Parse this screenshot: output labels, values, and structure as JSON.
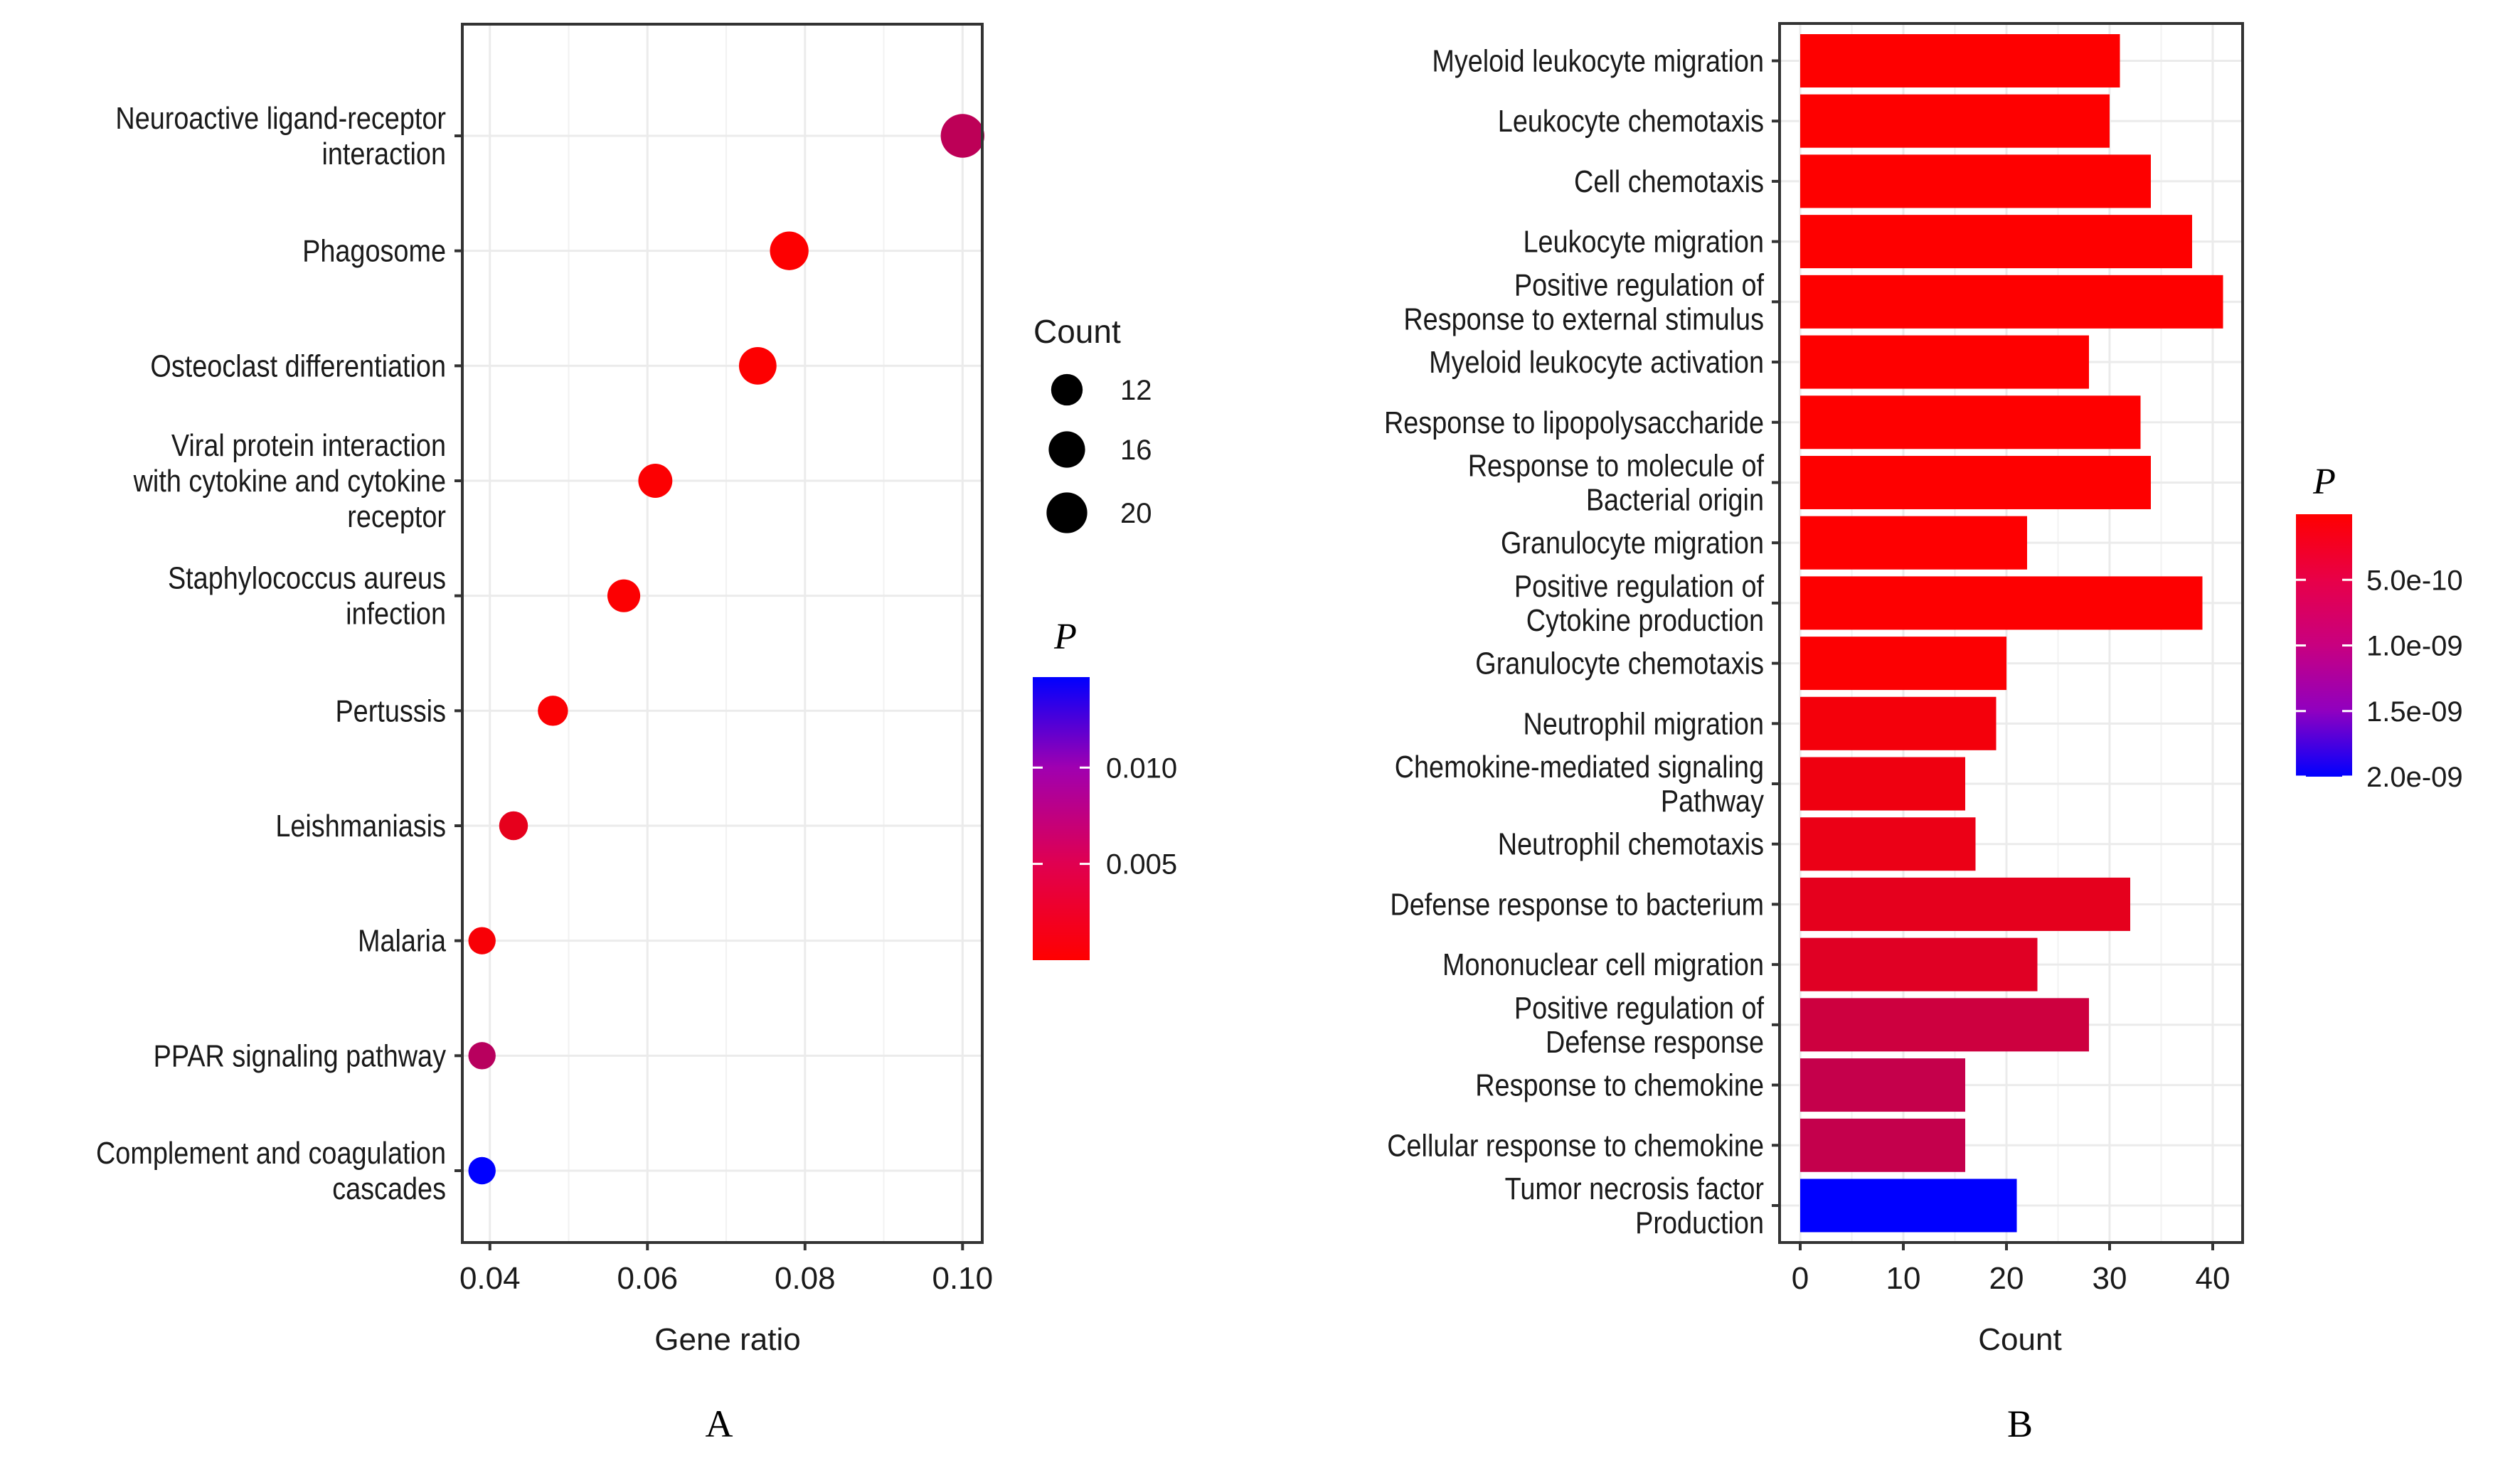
{
  "chart_data": [
    {
      "id": "A",
      "type": "scatter",
      "panel_label": "A",
      "title": "",
      "xlabel": "Gene ratio",
      "ylabel": "",
      "xlim": [
        0.0365,
        0.1025
      ],
      "xticks": [
        0.04,
        0.06,
        0.08,
        0.1
      ],
      "xtick_labels": [
        "0.04",
        "0.06",
        "0.08",
        "0.10"
      ],
      "grid": true,
      "categories": [
        "Neuroactive ligand-receptor\ninteraction",
        "Phagosome",
        "Osteoclast differentiation",
        "Viral protein interaction\nwith cytokine and cytokine\nreceptor",
        "Staphylococcus aureus\ninfection",
        "Pertussis",
        "Leishmaniasis",
        "Malaria",
        "PPAR signaling pathway",
        "Complement and coagulation\ncascades"
      ],
      "gene_ratio": [
        0.1,
        0.078,
        0.074,
        0.061,
        0.057,
        0.048,
        0.043,
        0.039,
        0.039,
        0.039
      ],
      "count": [
        23,
        18,
        17,
        14,
        13,
        11,
        10,
        9,
        9,
        9
      ],
      "p_value": [
        0.0062,
        0.0002,
        0.0002,
        0.0003,
        0.0003,
        0.0004,
        0.0025,
        0.0007,
        0.0066,
        0.0147
      ],
      "legend": {
        "size_title": "Count",
        "size_breaks": [
          12,
          16,
          20
        ],
        "size_labels": [
          "12",
          "16",
          "20"
        ],
        "color_title": "P",
        "color_range": [
          0,
          0.0147
        ],
        "color_breaks": [
          0.005,
          0.01
        ],
        "color_labels": [
          "0.005",
          "0.010"
        ],
        "color_low": "#ff0000",
        "color_high": "#0000ff",
        "placement": "right"
      }
    },
    {
      "id": "B",
      "type": "bar",
      "orientation": "horizontal",
      "panel_label": "B",
      "title": "",
      "xlabel": "Count",
      "ylabel": "",
      "xlim": [
        -1.3,
        42.9
      ],
      "xticks": [
        0,
        10,
        20,
        30,
        40
      ],
      "xtick_labels": [
        "0",
        "10",
        "20",
        "30",
        "40"
      ],
      "grid": true,
      "categories": [
        "Myeloid leukocyte migration",
        "Leukocyte chemotaxis",
        "Cell chemotaxis",
        "Leukocyte migration",
        "Positive regulation of\nResponse to external stimulus",
        "Myeloid leukocyte activation",
        "Response to lipopolysaccharide",
        "Response to molecule of\nBacterial origin",
        "Granulocyte migration",
        "Positive regulation of\nCytokine production",
        "Granulocyte chemotaxis",
        "Neutrophil migration",
        "Chemokine-mediated signaling\nPathway",
        "Neutrophil chemotaxis",
        "Defense response to bacterium",
        "Mononuclear cell migration",
        "Positive regulation of\nDefense response",
        "Response to chemokine",
        "Cellular response to chemokine",
        "Tumor necrosis factor\nProduction"
      ],
      "values": [
        31,
        30,
        34,
        38,
        41,
        28,
        33,
        34,
        22,
        39,
        20,
        19,
        16,
        17,
        32,
        23,
        28,
        16,
        16,
        21
      ],
      "p_value": [
        1e-11,
        1e-11,
        1e-11,
        1e-11,
        1e-11,
        1e-11,
        1e-11,
        1e-11,
        2e-11,
        3e-11,
        4e-11,
        1.6e-10,
        2.2e-10,
        2.8e-10,
        3.5e-10,
        4.2e-10,
        6.5e-10,
        7.5e-10,
        7.6e-10,
        2e-09
      ],
      "legend": {
        "color_title": "P",
        "color_range": [
          0,
          2e-09
        ],
        "color_breaks": [
          5e-10,
          1e-09,
          1.5e-09,
          2e-09
        ],
        "color_labels": [
          "5.0e-10",
          "1.0e-09",
          "1.5e-09",
          "2.0e-09"
        ],
        "color_low": "#ff0000",
        "color_high": "#0000ff",
        "placement": "right"
      }
    }
  ]
}
